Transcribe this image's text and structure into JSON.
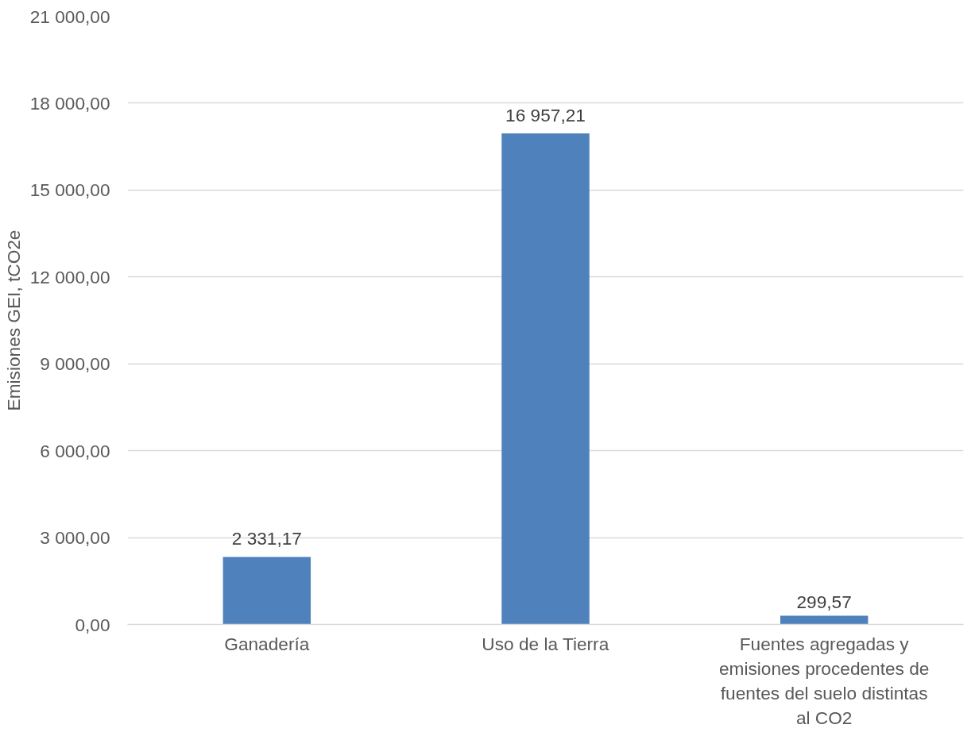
{
  "chart_data": {
    "type": "bar",
    "ylabel": "Emisiones GEI, tCO2e",
    "categories": [
      "Ganadería",
      "Uso de la Tierra",
      "Fuentes agregadas y emisiones procedentes de fuentes del suelo distintas al CO2"
    ],
    "values": [
      2331.17,
      16957.21,
      299.57
    ],
    "value_labels": [
      "2 331,17",
      "16 957,21",
      "299,57"
    ],
    "color": "#4f81bd",
    "ylim": [
      0,
      21000
    ],
    "yticks": [
      {
        "value": 0,
        "label": "0,00"
      },
      {
        "value": 3000,
        "label": "3 000,00"
      },
      {
        "value": 6000,
        "label": "6 000,00"
      },
      {
        "value": 9000,
        "label": "9 000,00"
      },
      {
        "value": 12000,
        "label": "12 000,00"
      },
      {
        "value": 15000,
        "label": "15 000,00"
      },
      {
        "value": 18000,
        "label": "18 000,00"
      },
      {
        "value": 21000,
        "label": "21 000,00"
      }
    ],
    "grid": "y"
  }
}
